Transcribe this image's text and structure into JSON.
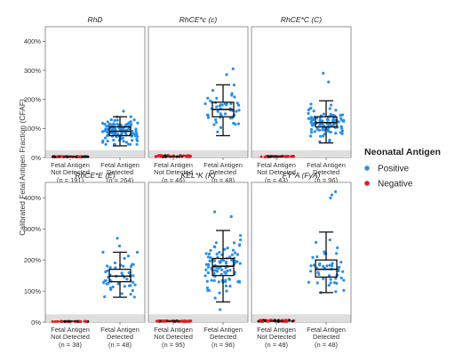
{
  "chart_data": {
    "type": "scatter",
    "ylabel": "Calibrated Fetal Antigen Fraction (CFAF)",
    "ylim": [
      0,
      450
    ],
    "yticks": [
      0,
      100,
      200,
      300,
      400
    ],
    "ytick_labels": [
      "0%",
      "100%",
      "200%",
      "300%",
      "400%"
    ],
    "grid": false,
    "shaded_band": [
      0,
      25
    ],
    "layout": "2 rows x 3 columns",
    "legend": {
      "title": "Neonatal Antigen",
      "placement": "right",
      "items": [
        {
          "label": "Positive",
          "color": "#2a8fe8"
        },
        {
          "label": "Negative",
          "color": "#e21c1c"
        }
      ]
    },
    "groups": [
      {
        "line1": "Fetal Antigen",
        "line2": "Not Detected"
      },
      {
        "line1": "Fetal Antigen",
        "line2": "Detected"
      }
    ],
    "panels": [
      {
        "title": "RhD",
        "n": [
          "(n = 191)",
          "(n = 264)"
        ],
        "not_detected_max": 2,
        "detected": {
          "min": 40,
          "q1": 75,
          "median": 90,
          "q3": 105,
          "max": 140,
          "spread_low": 45,
          "spread_high": 175,
          "outliers": []
        }
      },
      {
        "title": "RhCE*c (c)",
        "n": [
          "(n = 46)",
          "(n = 48)"
        ],
        "not_detected_max": 6,
        "detected": {
          "min": 75,
          "q1": 140,
          "median": 165,
          "q3": 190,
          "max": 250,
          "spread_low": 75,
          "spread_high": 260,
          "outliers": [
            305,
            285
          ]
        }
      },
      {
        "title": "RhCE*C (C)",
        "n": [
          "(n = 43)",
          "(n = 96)"
        ],
        "not_detected_max": 3,
        "detected": {
          "min": 50,
          "q1": 105,
          "median": 120,
          "q3": 140,
          "max": 195,
          "spread_low": 45,
          "spread_high": 210,
          "outliers": [
            290,
            260
          ]
        }
      },
      {
        "title": "RhCE*E (E)",
        "n": [
          "(n = 38)",
          "(n = 48)"
        ],
        "not_detected_max": 1,
        "detected": {
          "min": 80,
          "q1": 130,
          "median": 148,
          "q3": 170,
          "max": 225,
          "spread_low": 80,
          "spread_high": 225,
          "outliers": [
            270,
            245
          ]
        }
      },
      {
        "title": "KEL*K (K)",
        "n": [
          "(n = 95)",
          "(n = 96)"
        ],
        "not_detected_max": 3,
        "detected": {
          "min": 65,
          "q1": 150,
          "median": 180,
          "q3": 205,
          "max": 295,
          "spread_low": 45,
          "spread_high": 300,
          "outliers": [
            355,
            340,
            40
          ]
        }
      },
      {
        "title": "FY*A (FyA)",
        "n": [
          "(n = 48)",
          "(n = 48)"
        ],
        "not_detected_max": 5,
        "detected": {
          "min": 95,
          "q1": 145,
          "median": 170,
          "q3": 200,
          "max": 290,
          "spread_low": 95,
          "spread_high": 265,
          "outliers": [
            420,
            410,
            400
          ]
        }
      }
    ]
  }
}
